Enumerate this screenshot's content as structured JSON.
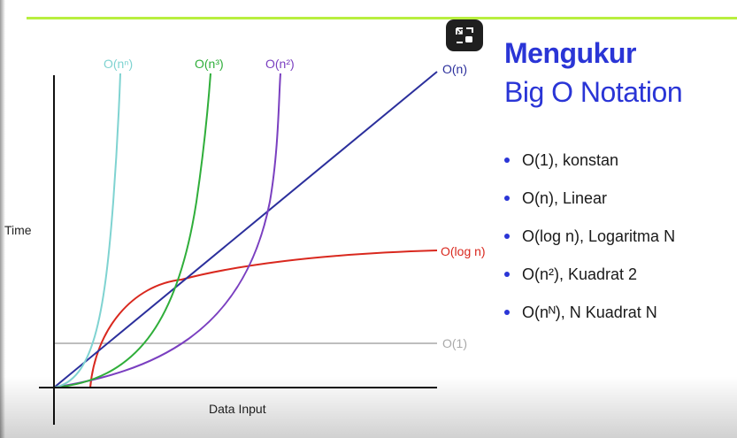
{
  "slide": {
    "title_line1": "Mengukur",
    "title_line2": "Big O Notation",
    "accent_color": "#2a35d6",
    "top_line_color": "#b8ef3f",
    "bullets": [
      "O(1), konstan",
      "O(n), Linear",
      "O(log n), Logaritma N",
      "O(n²), Kuadrat 2",
      "O(nᴺ), N Kuadrat N"
    ]
  },
  "pip_button": {
    "icon": "picture-in-picture-icon"
  },
  "chart_data": {
    "type": "line",
    "xlabel": "Data Input",
    "ylabel": "Time",
    "grid": false,
    "series": [
      {
        "name": "O(1)",
        "color": "#a9a9a9"
      },
      {
        "name": "O(log n)",
        "color": "#d9281e"
      },
      {
        "name": "O(n)",
        "color": "#2b2f9c"
      },
      {
        "name": "O(n²)",
        "color": "#7a3fc0"
      },
      {
        "name": "O(n³)",
        "color": "#2fae3a"
      },
      {
        "name": "O(nⁿ)",
        "color": "#7fd3d1"
      }
    ]
  }
}
